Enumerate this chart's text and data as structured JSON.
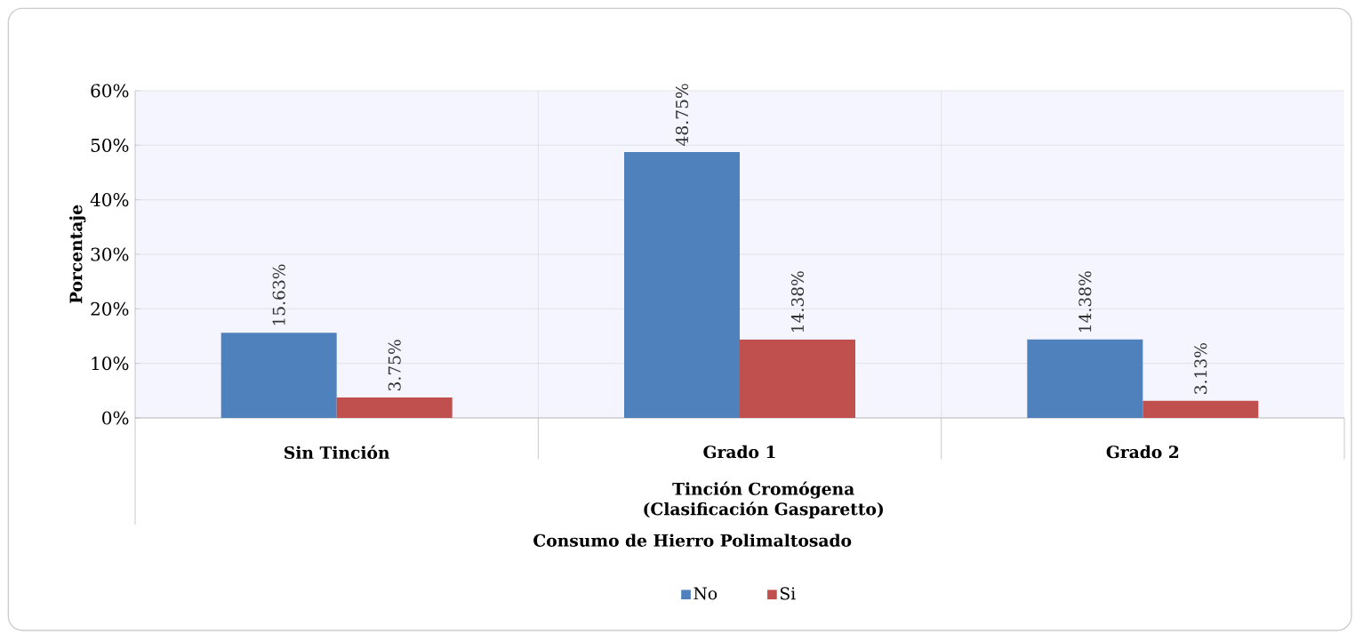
{
  "chart_data": {
    "type": "bar",
    "xlabel": "Consumo de Hierro Polimaltosado",
    "ylabel": "Porcentaje",
    "categories": [
      "Sin Tinción",
      "Grado 1",
      "Grado 2"
    ],
    "series": [
      {
        "name": "No",
        "color": "#4f81bd",
        "values": [
          15.63,
          48.75,
          14.38
        ],
        "value_labels": [
          "15.63%",
          "48.75%",
          "14.38%"
        ]
      },
      {
        "name": "Si",
        "color": "#c0504d",
        "values": [
          3.75,
          14.38,
          3.13
        ],
        "value_labels": [
          "3.75%",
          "14.38%",
          "3.13%"
        ]
      }
    ],
    "ylim": [
      0,
      60
    ],
    "yticks": [
      {
        "value": 0,
        "label": "0%"
      },
      {
        "value": 10,
        "label": "10%"
      },
      {
        "value": 20,
        "label": "20%"
      },
      {
        "value": 30,
        "label": "30%"
      },
      {
        "value": 40,
        "label": "40%"
      },
      {
        "value": 50,
        "label": "50%"
      },
      {
        "value": 60,
        "label": "60%"
      }
    ],
    "grid": "y",
    "legend": "bottom",
    "annotations": [
      "Tinción Cromógena (Clasificación Gasparetto)"
    ]
  }
}
